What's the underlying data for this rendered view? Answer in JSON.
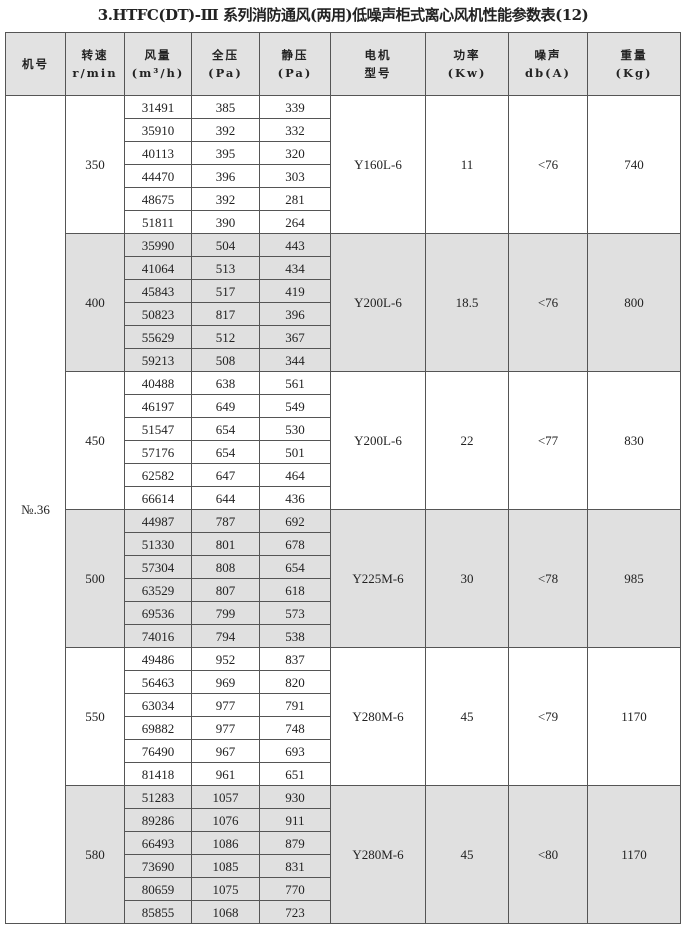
{
  "title": "3.HTFC(DT)-Ⅲ 系列消防通风(两用)低噪声柜式离心风机性能参数表(12)",
  "headers": [
    {
      "l1": "机号",
      "l2": ""
    },
    {
      "l1": "转速",
      "l2": "r/min"
    },
    {
      "l1": "风量",
      "l2": "(m³/h)"
    },
    {
      "l1": "全压",
      "l2": "(Pa)"
    },
    {
      "l1": "静压",
      "l2": "(Pa)"
    },
    {
      "l1": "电机",
      "l2": "型号"
    },
    {
      "l1": "功率",
      "l2": "(Kw)"
    },
    {
      "l1": "噪声",
      "l2": "db(A)"
    },
    {
      "l1": "重量",
      "l2": "(Kg)"
    }
  ],
  "model_no": "№.36",
  "shade_color": "#e0e0e0",
  "groups": [
    {
      "rpm": "350",
      "motor": "Y160L-6",
      "power": "11",
      "noise": "<76",
      "weight": "740",
      "rows": [
        [
          "31491",
          "385",
          "339"
        ],
        [
          "35910",
          "392",
          "332"
        ],
        [
          "40113",
          "395",
          "320"
        ],
        [
          "44470",
          "396",
          "303"
        ],
        [
          "48675",
          "392",
          "281"
        ],
        [
          "51811",
          "390",
          "264"
        ]
      ]
    },
    {
      "rpm": "400",
      "motor": "Y200L-6",
      "power": "18.5",
      "noise": "<76",
      "weight": "800",
      "rows": [
        [
          "35990",
          "504",
          "443"
        ],
        [
          "41064",
          "513",
          "434"
        ],
        [
          "45843",
          "517",
          "419"
        ],
        [
          "50823",
          "817",
          "396"
        ],
        [
          "55629",
          "512",
          "367"
        ],
        [
          "59213",
          "508",
          "344"
        ]
      ]
    },
    {
      "rpm": "450",
      "motor": "Y200L-6",
      "power": "22",
      "noise": "<77",
      "weight": "830",
      "rows": [
        [
          "40488",
          "638",
          "561"
        ],
        [
          "46197",
          "649",
          "549"
        ],
        [
          "51547",
          "654",
          "530"
        ],
        [
          "57176",
          "654",
          "501"
        ],
        [
          "62582",
          "647",
          "464"
        ],
        [
          "66614",
          "644",
          "436"
        ]
      ]
    },
    {
      "rpm": "500",
      "motor": "Y225M-6",
      "power": "30",
      "noise": "<78",
      "weight": "985",
      "rows": [
        [
          "44987",
          "787",
          "692"
        ],
        [
          "51330",
          "801",
          "678"
        ],
        [
          "57304",
          "808",
          "654"
        ],
        [
          "63529",
          "807",
          "618"
        ],
        [
          "69536",
          "799",
          "573"
        ],
        [
          "74016",
          "794",
          "538"
        ]
      ]
    },
    {
      "rpm": "550",
      "motor": "Y280M-6",
      "power": "45",
      "noise": "<79",
      "weight": "1170",
      "rows": [
        [
          "49486",
          "952",
          "837"
        ],
        [
          "56463",
          "969",
          "820"
        ],
        [
          "63034",
          "977",
          "791"
        ],
        [
          "69882",
          "977",
          "748"
        ],
        [
          "76490",
          "967",
          "693"
        ],
        [
          "81418",
          "961",
          "651"
        ]
      ]
    },
    {
      "rpm": "580",
      "motor": "Y280M-6",
      "power": "45",
      "noise": "<80",
      "weight": "1170",
      "rows": [
        [
          "51283",
          "1057",
          "930"
        ],
        [
          "89286",
          "1076",
          "911"
        ],
        [
          "66493",
          "1086",
          "879"
        ],
        [
          "73690",
          "1085",
          "831"
        ],
        [
          "80659",
          "1075",
          "770"
        ],
        [
          "85855",
          "1068",
          "723"
        ]
      ]
    }
  ]
}
